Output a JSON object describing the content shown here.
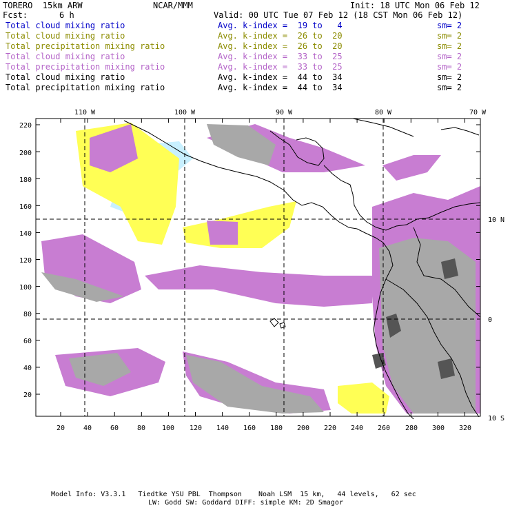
{
  "header": {
    "model": "TORERO  15km ARW",
    "org": "NCAR/MMM",
    "init": "Init: 18 UTC Mon 06 Feb 12",
    "fcst_label": "Fcst:",
    "fcst_value": "6 h",
    "valid": "Valid: 00 UTC Tue 07 Feb 12 (18 CST Mon 06 Feb 12)"
  },
  "legend": [
    {
      "name": "Total cloud mixing ratio",
      "kindex": "Avg. k-index =  19 to   4",
      "sm": "sm= 2",
      "color": "#0000c8"
    },
    {
      "name": "Total cloud mixing ratio",
      "kindex": "Avg. k-index =  26 to  20",
      "sm": "sm= 2",
      "color": "#8c8c00"
    },
    {
      "name": "Total precipitation mixing ratio",
      "kindex": "Avg. k-index =  26 to  20",
      "sm": "sm= 2",
      "color": "#8c8c00"
    },
    {
      "name": "Total cloud mixing ratio",
      "kindex": "Avg. k-index =  33 to  25",
      "sm": "sm= 2",
      "color": "#b464c8"
    },
    {
      "name": "Total precipitation mixing ratio",
      "kindex": "Avg. k-index =  33 to  25",
      "sm": "sm= 2",
      "color": "#b464c8"
    },
    {
      "name": "Total cloud mixing ratio",
      "kindex": "Avg. k-index =  44 to  34",
      "sm": "sm= 2",
      "color": "#000000"
    },
    {
      "name": "Total precipitation mixing ratio",
      "kindex": "Avg. k-index =  44 to  34",
      "sm": "sm= 2",
      "color": "#000000"
    }
  ],
  "map": {
    "lon_labels": [
      "110 W",
      "100 W",
      "90 W",
      "80 W",
      "70 W"
    ],
    "lat_labels": [
      "10 N",
      "0",
      "10 S"
    ],
    "y_ticks": [
      "220",
      "200",
      "180",
      "160",
      "140",
      "120",
      "100",
      "80",
      "60",
      "40",
      "20"
    ],
    "x_ticks": [
      "20",
      "40",
      "60",
      "80",
      "100",
      "120",
      "140",
      "160",
      "180",
      "200",
      "220",
      "240",
      "260",
      "280",
      "300",
      "320"
    ],
    "colors": {
      "yellow": "#ffff55",
      "purple": "#c87dd2",
      "gray": "#a8a8a8",
      "dark": "#555555",
      "cyan": "#c8f0ff"
    }
  },
  "footer": {
    "line1": "Model Info: V3.3.1   Tiedtke YSU PBL  Thompson    Noah LSM  15 km,   44 levels,   62 sec",
    "line2": "LW: Godd SW: Goddard DIFF: simple KM: 2D Smagor"
  }
}
